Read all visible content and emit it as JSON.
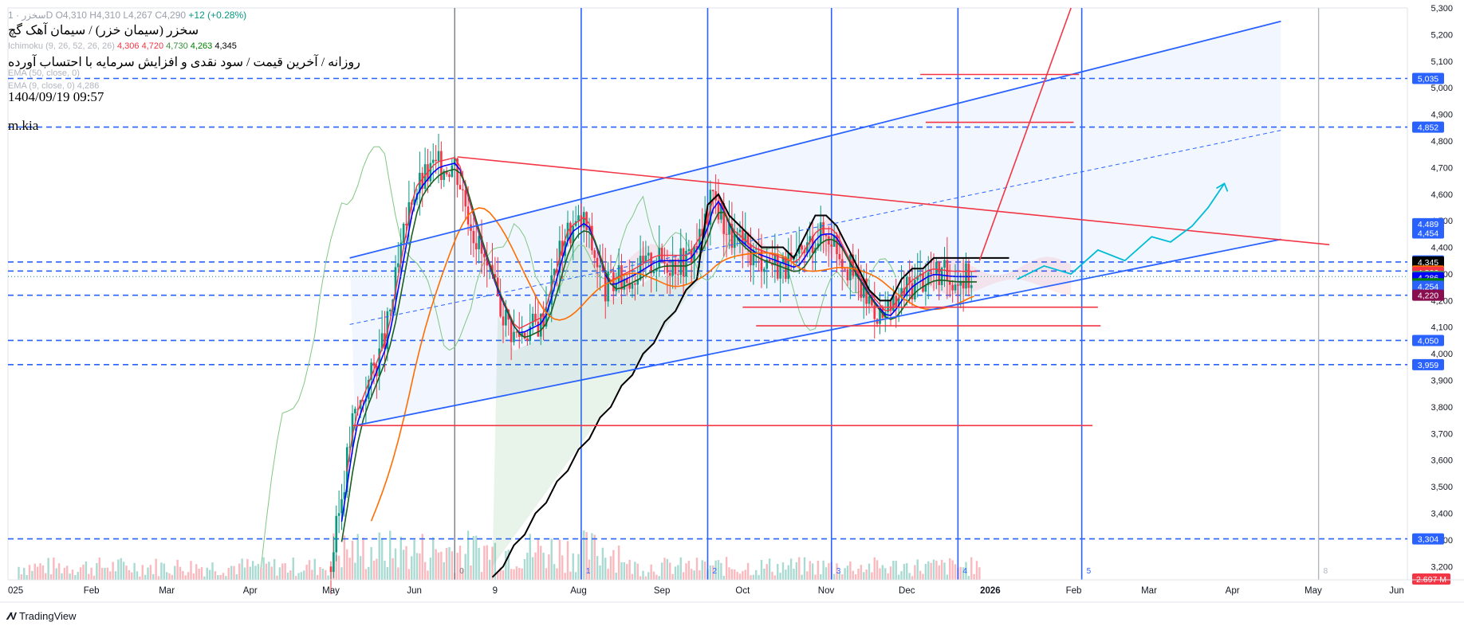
{
  "header": {
    "symbol_line": "سخزر · 1D",
    "ohlc": "O4,310 H4,310 L4,267 C4,290",
    "change": "+12 (+0.28%)",
    "ichimoku": "Ichimoku (9, 26, 52, 26, 26)",
    "ichimoku_values": [
      "4,306",
      "4,720",
      "4,730",
      "4,263",
      "4,345"
    ],
    "ema50": "EMA (50, close, 0)",
    "ema9": "EMA (9, close, 0)  4,286"
  },
  "overlay": {
    "title": "سخزر (سیمان خزر) / سیمان آهک گچ",
    "subtitle": "روزانه / آخرین قیمت / سود نقدی و افزایش سرمایه با احتساب آورده",
    "timestamp": "1404/09/19 09:57",
    "author": "m.kia"
  },
  "brand": "TradingView",
  "chart_data": {
    "type": "candlestick",
    "ylim": [
      3150,
      5300
    ],
    "y_ticks": [
      3200,
      3300,
      3400,
      3500,
      3600,
      3700,
      3800,
      3900,
      4000,
      4100,
      4200,
      4300,
      4400,
      4500,
      4600,
      4700,
      4800,
      4900,
      5000,
      5100,
      5200,
      5300
    ],
    "x_labels": [
      "025",
      "Feb",
      "Mar",
      "Apr",
      "May",
      "Jun",
      "9",
      "Aug",
      "Sep",
      "Oct",
      "Nov",
      "Dec",
      "2026",
      "Feb",
      "Mar",
      "Apr",
      "May",
      "Jun"
    ],
    "x_label_days": [
      0,
      31,
      59,
      90,
      120,
      151,
      181,
      212,
      243,
      273,
      304,
      334,
      365,
      396,
      424,
      455,
      485,
      516
    ],
    "x_range_days": [
      0,
      520
    ],
    "price_badges": [
      {
        "text": "5,300",
        "value": 5300,
        "color": ""
      },
      {
        "text": "5,035",
        "value": 5035,
        "color": "#2962ff"
      },
      {
        "text": "4,852",
        "value": 4852,
        "color": "#2962ff"
      },
      {
        "text": "4,489",
        "value": 4489,
        "color": "#2962ff"
      },
      {
        "text": "4,454",
        "value": 4454,
        "color": "#2962ff"
      },
      {
        "text": "4,349",
        "value": 4349,
        "color": "#2962ff"
      },
      {
        "text": "4,345",
        "value": 4345,
        "color": "#000000"
      },
      {
        "text": "4,311",
        "value": 4311,
        "color": "#ff6d00"
      },
      {
        "text": "4,306",
        "value": 4306,
        "color": "#f23645"
      },
      {
        "text": "4,290",
        "value": 4290,
        "color": "#089981"
      },
      {
        "text": "4,290",
        "value": 4290,
        "color": "#4caf50"
      },
      {
        "text": "4,286",
        "value": 4286,
        "color": "#1b5e20"
      },
      {
        "text": "4,286",
        "value": 4286,
        "color": "#0000ff"
      },
      {
        "text": "4,263",
        "value": 4263,
        "color": "#008000"
      },
      {
        "text": "4,254",
        "value": 4254,
        "color": "#2962ff"
      },
      {
        "text": "4,220",
        "value": 4220,
        "color": "#880e4f"
      },
      {
        "text": "4,050",
        "value": 4050,
        "color": "#2962ff"
      },
      {
        "text": "3,959",
        "value": 3959,
        "color": "#2962ff"
      },
      {
        "text": "3,304",
        "value": 3304,
        "color": "#2962ff"
      }
    ],
    "volume_badge": "2.697 M",
    "horizontal_levels": [
      5035,
      4852,
      4345,
      4311,
      4220,
      4050,
      3959,
      3304
    ],
    "vertical_markers": [
      {
        "day": 213,
        "label": "1"
      },
      {
        "day": 260,
        "label": "2"
      },
      {
        "day": 306,
        "label": "3"
      },
      {
        "day": 353,
        "label": "4"
      },
      {
        "day": 399,
        "label": "5"
      }
    ],
    "first_marker": {
      "day": 166,
      "label": "0"
    },
    "end_marker": {
      "day": 487,
      "label": "8"
    },
    "channel": {
      "upper": [
        {
          "day": 127,
          "price": 4360
        },
        {
          "day": 473,
          "price": 5250
        }
      ],
      "lower": [
        {
          "day": 129,
          "price": 3730
        },
        {
          "day": 473,
          "price": 4430
        }
      ],
      "mid": [
        {
          "day": 127,
          "price": 4110
        },
        {
          "day": 473,
          "price": 4840
        }
      ]
    },
    "red_lines": [
      {
        "from": [
          167,
          4740
        ],
        "to": [
          491,
          4410
        ]
      },
      {
        "from": [
          361,
          4350
        ],
        "to": [
          395,
          5300
        ]
      },
      {
        "from": [
          128,
          3730
        ],
        "to": [
          403,
          3730
        ]
      },
      {
        "from": [
          339,
          5050
        ],
        "to": [
          398,
          5050
        ]
      },
      {
        "from": [
          341,
          4870
        ],
        "to": [
          396,
          4870
        ]
      },
      {
        "from": [
          273,
          4175
        ],
        "to": [
          405,
          4175
        ]
      },
      {
        "from": [
          278,
          4105
        ],
        "to": [
          406,
          4105
        ]
      }
    ],
    "projection": [
      [
        375,
        4280
      ],
      [
        385,
        4330
      ],
      [
        395,
        4300
      ],
      [
        405,
        4390
      ],
      [
        415,
        4350
      ],
      [
        425,
        4440
      ],
      [
        432,
        4420
      ],
      [
        440,
        4480
      ],
      [
        446,
        4550
      ],
      [
        452,
        4640
      ]
    ],
    "series": [
      {
        "name": "Ichimoku (9, 26, 52, 26, 26)",
        "color": "#000000"
      },
      {
        "name": "EMA (50, close, 0)",
        "color": "#ff6d00"
      },
      {
        "name": "EMA (9, close, 0)",
        "color": "#0000ff"
      }
    ],
    "ohlc_last": {
      "open": 4310,
      "high": 4310,
      "low": 4267,
      "close": 4290
    },
    "grid": false,
    "legend": "top-left"
  }
}
